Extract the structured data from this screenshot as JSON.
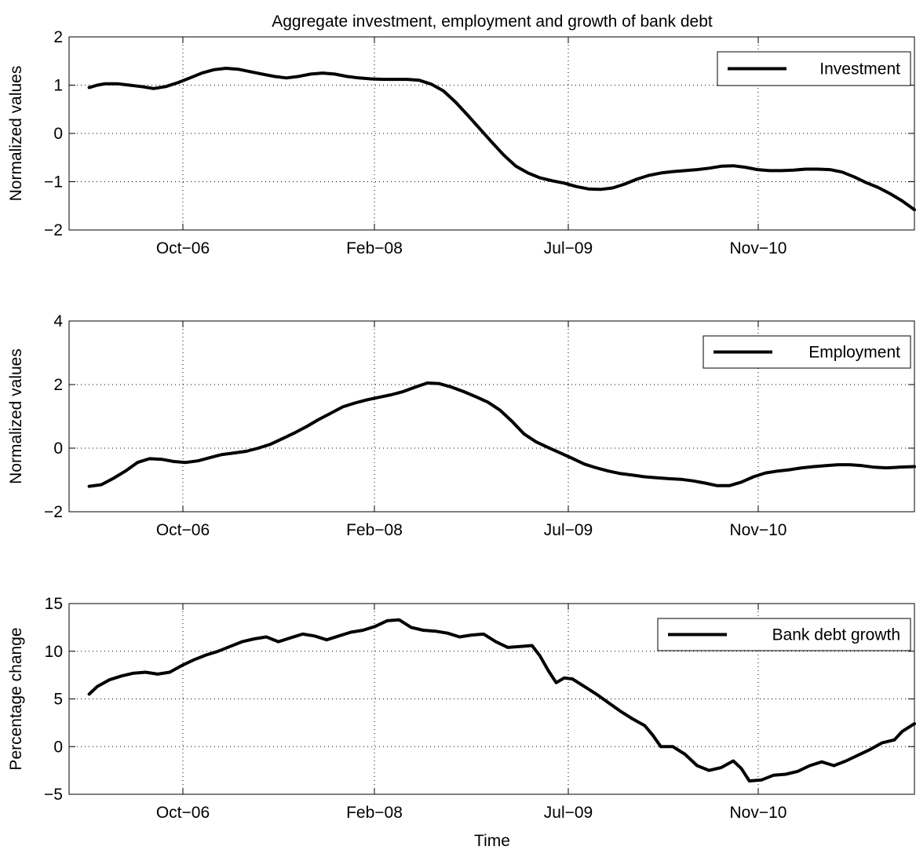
{
  "figure": {
    "title": "Aggregate investment, employment and growth of bank debt",
    "xlabel": "Time"
  },
  "chart_data": [
    {
      "type": "line",
      "title": "Aggregate investment, employment and growth of bank debt",
      "ylabel": "Normalized values",
      "xlabel": "",
      "x_tick_labels": [
        "Oct−06",
        "Feb−08",
        "Jul−09",
        "Nov−10"
      ],
      "y_tick_labels": [
        "−2",
        "−1",
        "0",
        "1",
        "2"
      ],
      "y_ticks": [
        -2,
        -1,
        0,
        1,
        2
      ],
      "ylim": [
        -2,
        2
      ],
      "grid": true,
      "legend_position": "top-right",
      "series": [
        {
          "name": "Investment",
          "color": "#000000",
          "points": [
            [
              0.0,
              0.95
            ],
            [
              0.2,
              1.0
            ],
            [
              0.4,
              1.03
            ],
            [
              0.7,
              1.03
            ],
            [
              1.0,
              1.0
            ],
            [
              1.3,
              0.97
            ],
            [
              1.6,
              0.93
            ],
            [
              1.9,
              0.97
            ],
            [
              2.2,
              1.05
            ],
            [
              2.5,
              1.15
            ],
            [
              2.8,
              1.25
            ],
            [
              3.1,
              1.32
            ],
            [
              3.4,
              1.35
            ],
            [
              3.7,
              1.33
            ],
            [
              4.0,
              1.28
            ],
            [
              4.3,
              1.23
            ],
            [
              4.6,
              1.18
            ],
            [
              4.9,
              1.15
            ],
            [
              5.2,
              1.18
            ],
            [
              5.5,
              1.23
            ],
            [
              5.8,
              1.25
            ],
            [
              6.1,
              1.23
            ],
            [
              6.4,
              1.18
            ],
            [
              6.7,
              1.15
            ],
            [
              7.0,
              1.13
            ],
            [
              7.3,
              1.12
            ],
            [
              7.6,
              1.12
            ],
            [
              7.9,
              1.12
            ],
            [
              8.2,
              1.1
            ],
            [
              8.5,
              1.02
            ],
            [
              8.8,
              0.88
            ],
            [
              9.1,
              0.65
            ],
            [
              9.4,
              0.38
            ],
            [
              9.7,
              0.1
            ],
            [
              10.0,
              -0.18
            ],
            [
              10.3,
              -0.45
            ],
            [
              10.6,
              -0.68
            ],
            [
              10.9,
              -0.82
            ],
            [
              11.2,
              -0.92
            ],
            [
              11.5,
              -0.98
            ],
            [
              11.8,
              -1.03
            ],
            [
              12.1,
              -1.1
            ],
            [
              12.4,
              -1.15
            ],
            [
              12.7,
              -1.16
            ],
            [
              13.0,
              -1.13
            ],
            [
              13.3,
              -1.05
            ],
            [
              13.6,
              -0.95
            ],
            [
              13.9,
              -0.87
            ],
            [
              14.2,
              -0.82
            ],
            [
              14.5,
              -0.79
            ],
            [
              14.8,
              -0.77
            ],
            [
              15.1,
              -0.75
            ],
            [
              15.4,
              -0.72
            ],
            [
              15.7,
              -0.68
            ],
            [
              16.0,
              -0.67
            ],
            [
              16.3,
              -0.7
            ],
            [
              16.6,
              -0.75
            ],
            [
              16.9,
              -0.77
            ],
            [
              17.2,
              -0.77
            ],
            [
              17.5,
              -0.76
            ],
            [
              17.8,
              -0.74
            ],
            [
              18.1,
              -0.74
            ],
            [
              18.4,
              -0.75
            ],
            [
              18.7,
              -0.8
            ],
            [
              19.0,
              -0.9
            ],
            [
              19.3,
              -1.02
            ],
            [
              19.6,
              -1.12
            ],
            [
              19.9,
              -1.25
            ],
            [
              20.2,
              -1.4
            ],
            [
              20.5,
              -1.58
            ]
          ]
        }
      ]
    },
    {
      "type": "line",
      "title": "",
      "ylabel": "Normalized values",
      "xlabel": "",
      "x_tick_labels": [
        "Oct−06",
        "Feb−08",
        "Jul−09",
        "Nov−10"
      ],
      "y_tick_labels": [
        "−2",
        "0",
        "2",
        "4"
      ],
      "y_ticks": [
        -2,
        0,
        2,
        4
      ],
      "ylim": [
        -2,
        4
      ],
      "grid": true,
      "legend_position": "top-right",
      "series": [
        {
          "name": "Employment",
          "color": "#000000",
          "points": [
            [
              0.0,
              -1.2
            ],
            [
              0.3,
              -1.15
            ],
            [
              0.6,
              -0.95
            ],
            [
              0.9,
              -0.72
            ],
            [
              1.2,
              -0.45
            ],
            [
              1.5,
              -0.33
            ],
            [
              1.8,
              -0.35
            ],
            [
              2.1,
              -0.42
            ],
            [
              2.4,
              -0.45
            ],
            [
              2.7,
              -0.4
            ],
            [
              3.0,
              -0.3
            ],
            [
              3.3,
              -0.2
            ],
            [
              3.6,
              -0.15
            ],
            [
              3.9,
              -0.1
            ],
            [
              4.2,
              0.0
            ],
            [
              4.5,
              0.12
            ],
            [
              4.8,
              0.3
            ],
            [
              5.1,
              0.48
            ],
            [
              5.4,
              0.68
            ],
            [
              5.7,
              0.9
            ],
            [
              6.0,
              1.1
            ],
            [
              6.3,
              1.3
            ],
            [
              6.6,
              1.42
            ],
            [
              6.9,
              1.52
            ],
            [
              7.2,
              1.6
            ],
            [
              7.5,
              1.68
            ],
            [
              7.8,
              1.78
            ],
            [
              8.1,
              1.92
            ],
            [
              8.4,
              2.05
            ],
            [
              8.7,
              2.03
            ],
            [
              9.0,
              1.92
            ],
            [
              9.3,
              1.78
            ],
            [
              9.6,
              1.62
            ],
            [
              9.9,
              1.45
            ],
            [
              10.2,
              1.2
            ],
            [
              10.5,
              0.85
            ],
            [
              10.8,
              0.45
            ],
            [
              11.1,
              0.2
            ],
            [
              11.4,
              0.02
            ],
            [
              11.7,
              -0.15
            ],
            [
              12.0,
              -0.32
            ],
            [
              12.3,
              -0.5
            ],
            [
              12.6,
              -0.62
            ],
            [
              12.9,
              -0.72
            ],
            [
              13.2,
              -0.8
            ],
            [
              13.5,
              -0.85
            ],
            [
              13.8,
              -0.9
            ],
            [
              14.1,
              -0.93
            ],
            [
              14.4,
              -0.96
            ],
            [
              14.7,
              -0.98
            ],
            [
              15.0,
              -1.03
            ],
            [
              15.3,
              -1.1
            ],
            [
              15.6,
              -1.18
            ],
            [
              15.9,
              -1.18
            ],
            [
              16.2,
              -1.07
            ],
            [
              16.5,
              -0.9
            ],
            [
              16.8,
              -0.78
            ],
            [
              17.1,
              -0.72
            ],
            [
              17.4,
              -0.68
            ],
            [
              17.7,
              -0.62
            ],
            [
              18.0,
              -0.58
            ],
            [
              18.3,
              -0.55
            ],
            [
              18.6,
              -0.52
            ],
            [
              18.9,
              -0.52
            ],
            [
              19.2,
              -0.55
            ],
            [
              19.5,
              -0.6
            ],
            [
              19.8,
              -0.62
            ],
            [
              20.1,
              -0.6
            ],
            [
              20.5,
              -0.58
            ]
          ]
        }
      ]
    },
    {
      "type": "line",
      "title": "",
      "ylabel": "Percentage change",
      "xlabel": "Time",
      "x_tick_labels": [
        "Oct−06",
        "Feb−08",
        "Jul−09",
        "Nov−10"
      ],
      "y_tick_labels": [
        "−5",
        "0",
        "5",
        "10",
        "15"
      ],
      "y_ticks": [
        -5,
        0,
        5,
        10,
        15
      ],
      "ylim": [
        -5,
        15
      ],
      "grid": true,
      "legend_position": "top-right",
      "series": [
        {
          "name": "Bank debt growth",
          "color": "#000000",
          "points": [
            [
              0.0,
              5.5
            ],
            [
              0.2,
              6.3
            ],
            [
              0.5,
              7.0
            ],
            [
              0.8,
              7.4
            ],
            [
              1.1,
              7.7
            ],
            [
              1.4,
              7.8
            ],
            [
              1.7,
              7.6
            ],
            [
              2.0,
              7.8
            ],
            [
              2.3,
              8.5
            ],
            [
              2.6,
              9.1
            ],
            [
              2.9,
              9.6
            ],
            [
              3.2,
              10.0
            ],
            [
              3.5,
              10.5
            ],
            [
              3.8,
              11.0
            ],
            [
              4.1,
              11.3
            ],
            [
              4.4,
              11.5
            ],
            [
              4.7,
              11.0
            ],
            [
              5.0,
              11.4
            ],
            [
              5.3,
              11.8
            ],
            [
              5.6,
              11.6
            ],
            [
              5.9,
              11.2
            ],
            [
              6.2,
              11.6
            ],
            [
              6.5,
              12.0
            ],
            [
              6.8,
              12.2
            ],
            [
              7.1,
              12.6
            ],
            [
              7.4,
              13.2
            ],
            [
              7.7,
              13.3
            ],
            [
              8.0,
              12.5
            ],
            [
              8.3,
              12.2
            ],
            [
              8.6,
              12.1
            ],
            [
              8.9,
              11.9
            ],
            [
              9.2,
              11.5
            ],
            [
              9.5,
              11.7
            ],
            [
              9.8,
              11.8
            ],
            [
              10.1,
              11.0
            ],
            [
              10.4,
              10.4
            ],
            [
              10.7,
              10.5
            ],
            [
              11.0,
              10.6
            ],
            [
              11.2,
              9.5
            ],
            [
              11.4,
              8.0
            ],
            [
              11.6,
              6.7
            ],
            [
              11.8,
              7.2
            ],
            [
              12.0,
              7.1
            ],
            [
              12.3,
              6.3
            ],
            [
              12.6,
              5.5
            ],
            [
              12.9,
              4.6
            ],
            [
              13.2,
              3.7
            ],
            [
              13.5,
              2.9
            ],
            [
              13.8,
              2.2
            ],
            [
              14.0,
              1.2
            ],
            [
              14.2,
              0.0
            ],
            [
              14.5,
              0.0
            ],
            [
              14.8,
              -0.8
            ],
            [
              15.1,
              -2.0
            ],
            [
              15.4,
              -2.5
            ],
            [
              15.7,
              -2.2
            ],
            [
              16.0,
              -1.5
            ],
            [
              16.2,
              -2.3
            ],
            [
              16.4,
              -3.6
            ],
            [
              16.7,
              -3.5
            ],
            [
              17.0,
              -3.0
            ],
            [
              17.3,
              -2.9
            ],
            [
              17.6,
              -2.6
            ],
            [
              17.9,
              -2.0
            ],
            [
              18.2,
              -1.6
            ],
            [
              18.5,
              -2.0
            ],
            [
              18.8,
              -1.5
            ],
            [
              19.1,
              -0.9
            ],
            [
              19.4,
              -0.3
            ],
            [
              19.7,
              0.4
            ],
            [
              20.0,
              0.7
            ],
            [
              20.2,
              1.6
            ],
            [
              20.5,
              2.4
            ]
          ]
        }
      ]
    }
  ]
}
